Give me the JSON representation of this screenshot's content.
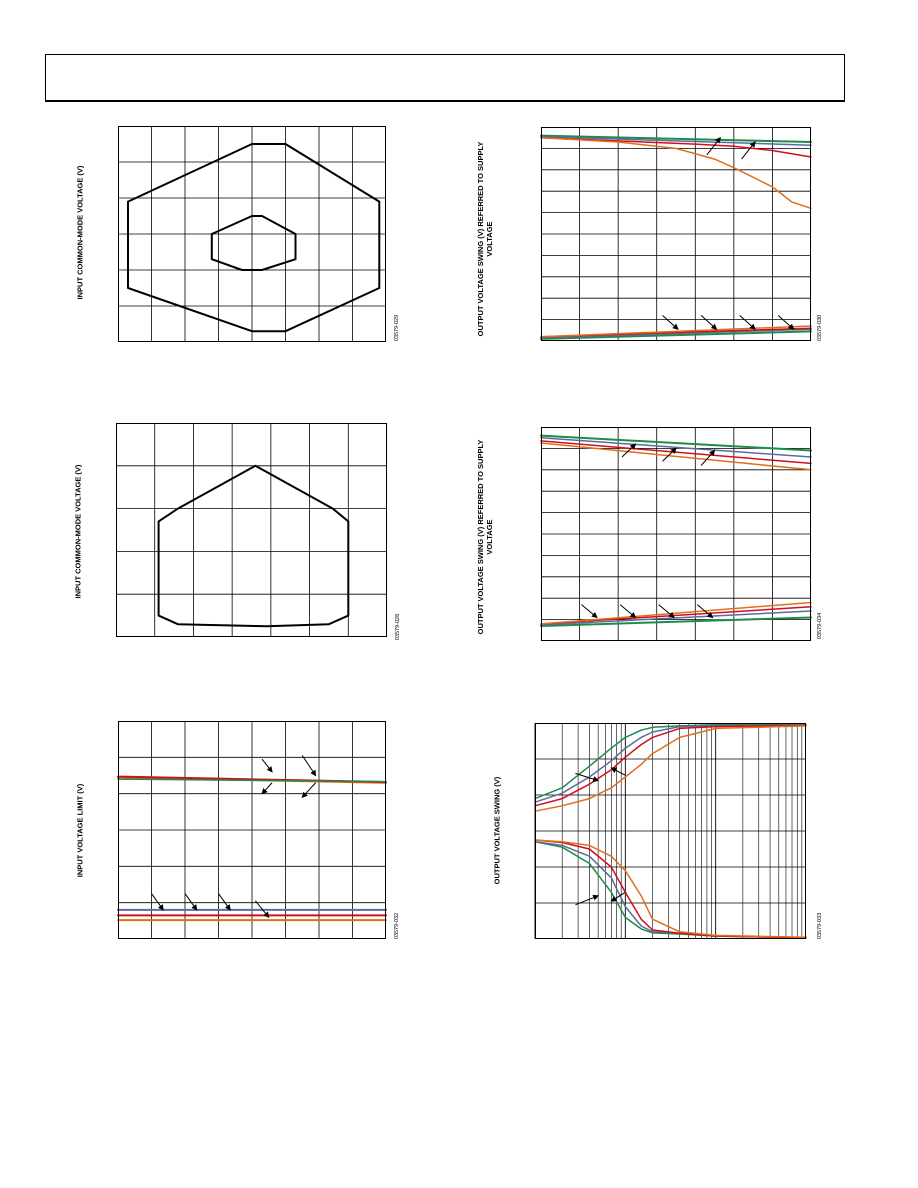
{
  "chart_data": [
    {
      "type": "line",
      "id": "c1",
      "ylabel": "INPUT COMMON-MODE VOLTAGE (V)",
      "figure_id": "03579-029",
      "xgrid": 8,
      "ygrid": 6,
      "series": [
        {
          "color": "#000000",
          "width": 2,
          "x": [
            0.3,
            4,
            5,
            7.8,
            7.8,
            5,
            4,
            0.3,
            0.3
          ],
          "y": [
            3.9,
            5.5,
            5.5,
            3.9,
            1.5,
            0.3,
            0.3,
            1.5,
            3.9
          ]
        },
        {
          "color": "#000000",
          "width": 2,
          "x": [
            2.8,
            4,
            4.3,
            5.3,
            5.3,
            4.3,
            3.7,
            2.8,
            2.8
          ],
          "y": [
            3.0,
            3.5,
            3.5,
            3.0,
            2.3,
            2.0,
            2.0,
            2.3,
            3.0
          ]
        }
      ],
      "arrows": []
    },
    {
      "type": "line",
      "id": "c2",
      "ylabel": "INPUT COMMON-MODE VOLTAGE (V)",
      "figure_id": "03579-028",
      "xgrid": 7,
      "ygrid": 5,
      "series": [
        {
          "color": "#000000",
          "width": 2,
          "x": [
            1.1,
            1.6,
            3.6,
            5.6,
            6.0,
            6.0,
            5.5,
            3.9,
            1.6,
            1.1,
            1.1
          ],
          "y": [
            2.7,
            3.0,
            4.0,
            3.0,
            2.7,
            0.5,
            0.3,
            0.25,
            0.3,
            0.5,
            2.7
          ]
        }
      ],
      "arrows": []
    },
    {
      "type": "line",
      "id": "c3",
      "ylabel": "INPUT VOLTAGE LIMIT (V)",
      "figure_id": "03579-032",
      "xgrid": 8,
      "ygrid": 6,
      "series": [
        {
          "color": "#e06f1b",
          "width": 2,
          "x": [
            0,
            8
          ],
          "y": [
            4.45,
            4.3
          ]
        },
        {
          "color": "#d0101e",
          "width": 2,
          "x": [
            0,
            8
          ],
          "y": [
            4.47,
            4.32
          ]
        },
        {
          "color": "#1f8a4c",
          "width": 1.5,
          "x": [
            0,
            8
          ],
          "y": [
            4.4,
            4.33
          ]
        },
        {
          "color": "#5c6c9c",
          "width": 2,
          "x": [
            0,
            8
          ],
          "y": [
            0.8,
            0.8
          ]
        },
        {
          "color": "#d0101e",
          "width": 2,
          "x": [
            0,
            8
          ],
          "y": [
            0.65,
            0.65
          ]
        },
        {
          "color": "#e06f1b",
          "width": 2,
          "x": [
            0,
            8
          ],
          "y": [
            0.52,
            0.52
          ]
        }
      ],
      "arrows": [
        [
          4.3,
          4.95,
          4.6,
          4.6
        ],
        [
          5.5,
          5.05,
          5.9,
          4.5
        ],
        [
          4.6,
          4.3,
          4.3,
          4.0
        ],
        [
          5.9,
          4.3,
          5.5,
          3.9
        ],
        [
          1.0,
          1.25,
          1.35,
          0.8
        ],
        [
          2.0,
          1.25,
          2.35,
          0.8
        ],
        [
          3.0,
          1.25,
          3.35,
          0.8
        ],
        [
          4.1,
          1.05,
          4.5,
          0.6
        ]
      ]
    },
    {
      "type": "line",
      "id": "c4",
      "ylabel": "OUTPUT VOLTAGE SWING (V) REFERRED TO SUPPLY VOLTAGE",
      "figure_id": "03579-030",
      "xgrid": 7,
      "ygrid": 10,
      "series": [
        {
          "color": "#1f8a4c",
          "width": 2,
          "x": [
            0,
            7
          ],
          "y": [
            9.6,
            9.3
          ]
        },
        {
          "color": "#5c6c9c",
          "width": 1.5,
          "x": [
            0,
            7
          ],
          "y": [
            9.55,
            9.15
          ]
        },
        {
          "color": "#d0101e",
          "width": 1.5,
          "x": [
            0,
            4,
            5,
            6,
            7
          ],
          "y": [
            9.5,
            9.2,
            9.1,
            8.9,
            8.6
          ]
        },
        {
          "color": "#e06f1b",
          "width": 1.5,
          "x": [
            0,
            2,
            3.5,
            4.5,
            5,
            6,
            6.5,
            7
          ],
          "y": [
            9.5,
            9.3,
            9.0,
            8.5,
            8.1,
            7.2,
            6.5,
            6.2
          ]
        },
        {
          "color": "#1f8a4c",
          "width": 2,
          "x": [
            0,
            7
          ],
          "y": [
            0.1,
            0.45
          ]
        },
        {
          "color": "#5c6c9c",
          "width": 1.5,
          "x": [
            0,
            7
          ],
          "y": [
            0.15,
            0.55
          ]
        },
        {
          "color": "#d0101e",
          "width": 1.5,
          "x": [
            0,
            7
          ],
          "y": [
            0.2,
            0.6
          ]
        },
        {
          "color": "#e06f1b",
          "width": 1.5,
          "x": [
            0,
            7
          ],
          "y": [
            0.2,
            0.7
          ]
        }
      ],
      "arrows": [
        [
          4.3,
          8.7,
          4.65,
          9.5
        ],
        [
          5.2,
          8.5,
          5.55,
          9.3
        ],
        [
          3.15,
          1.2,
          3.55,
          0.55
        ],
        [
          4.15,
          1.2,
          4.55,
          0.55
        ],
        [
          5.15,
          1.2,
          5.55,
          0.55
        ],
        [
          6.15,
          1.2,
          6.55,
          0.55
        ]
      ]
    },
    {
      "type": "line",
      "id": "c5",
      "ylabel": "OUTPUT VOLTAGE SWING (V) REFERRED TO SUPPLY VOLTAGE",
      "figure_id": "03579-034",
      "xgrid": 7,
      "ygrid": 10,
      "series": [
        {
          "color": "#1f8a4c",
          "width": 2,
          "x": [
            0,
            7
          ],
          "y": [
            9.6,
            8.9
          ]
        },
        {
          "color": "#5c6c9c",
          "width": 1.5,
          "x": [
            0,
            7
          ],
          "y": [
            9.5,
            8.6
          ]
        },
        {
          "color": "#d0101e",
          "width": 1.5,
          "x": [
            0,
            7
          ],
          "y": [
            9.35,
            8.3
          ]
        },
        {
          "color": "#e06f1b",
          "width": 1.5,
          "x": [
            0,
            7
          ],
          "y": [
            9.25,
            8.0
          ]
        },
        {
          "color": "#1f8a4c",
          "width": 2,
          "x": [
            0,
            7
          ],
          "y": [
            0.7,
            1.1
          ]
        },
        {
          "color": "#5c6c9c",
          "width": 1.5,
          "x": [
            0,
            7
          ],
          "y": [
            0.75,
            1.4
          ]
        },
        {
          "color": "#d0101e",
          "width": 1.5,
          "x": [
            0,
            7
          ],
          "y": [
            0.8,
            1.6
          ]
        },
        {
          "color": "#e06f1b",
          "width": 1.5,
          "x": [
            0,
            7
          ],
          "y": [
            0.8,
            1.8
          ]
        }
      ],
      "arrows": [
        [
          2.1,
          8.6,
          2.45,
          9.2
        ],
        [
          3.15,
          8.4,
          3.5,
          9.0
        ],
        [
          4.15,
          8.2,
          4.5,
          8.9
        ],
        [
          1.05,
          1.7,
          1.45,
          1.1
        ],
        [
          2.05,
          1.7,
          2.45,
          1.1
        ],
        [
          3.05,
          1.7,
          3.45,
          1.1
        ],
        [
          4.05,
          1.7,
          4.45,
          1.1
        ]
      ]
    },
    {
      "type": "line",
      "id": "c6",
      "ylabel": "OUTPUT VOLTAGE SWING (V)",
      "figure_id": "03579-033",
      "xscale": "log",
      "xlim": [
        100,
        100000
      ],
      "ylim": [
        0,
        6
      ],
      "ygrid": 6,
      "series": [
        {
          "color": "#1f8a4c",
          "width": 1.5,
          "x": [
            100,
            200,
            400,
            700,
            1000,
            1500,
            2000,
            4000,
            10000,
            100000
          ],
          "y": [
            3.9,
            4.2,
            4.8,
            5.3,
            5.6,
            5.8,
            5.88,
            5.92,
            5.95,
            5.95
          ]
        },
        {
          "color": "#5c6c9c",
          "width": 1.5,
          "x": [
            100,
            200,
            400,
            700,
            1000,
            1500,
            2000,
            4000,
            10000,
            100000
          ],
          "y": [
            3.8,
            4.05,
            4.5,
            4.95,
            5.3,
            5.6,
            5.75,
            5.9,
            5.92,
            5.94
          ]
        },
        {
          "color": "#d0101e",
          "width": 1.5,
          "x": [
            100,
            200,
            400,
            700,
            1000,
            1500,
            2000,
            4000,
            10000,
            100000
          ],
          "y": [
            3.7,
            3.9,
            4.3,
            4.7,
            5.05,
            5.4,
            5.6,
            5.85,
            5.9,
            5.93
          ]
        },
        {
          "color": "#e06f1b",
          "width": 1.5,
          "x": [
            100,
            200,
            400,
            700,
            1000,
            1500,
            2000,
            4000,
            10000,
            100000
          ],
          "y": [
            3.55,
            3.7,
            3.9,
            4.2,
            4.5,
            4.85,
            5.15,
            5.6,
            5.85,
            5.92
          ]
        },
        {
          "color": "#1f8a4c",
          "width": 1.5,
          "x": [
            100,
            200,
            400,
            700,
            1000,
            1500,
            2000,
            4000,
            10000,
            100000
          ],
          "y": [
            2.7,
            2.55,
            2.1,
            1.3,
            0.6,
            0.28,
            0.17,
            0.14,
            0.08,
            0.04
          ]
        },
        {
          "color": "#5c6c9c",
          "width": 1.5,
          "x": [
            100,
            200,
            400,
            700,
            1000,
            1500,
            2000,
            4000,
            10000,
            100000
          ],
          "y": [
            2.7,
            2.6,
            2.3,
            1.7,
            0.9,
            0.36,
            0.2,
            0.16,
            0.08,
            0.04
          ]
        },
        {
          "color": "#d0101e",
          "width": 1.5,
          "x": [
            100,
            200,
            400,
            700,
            1000,
            1500,
            2000,
            4000,
            10000,
            100000
          ],
          "y": [
            2.75,
            2.68,
            2.5,
            2.0,
            1.3,
            0.55,
            0.25,
            0.16,
            0.08,
            0.04
          ]
        },
        {
          "color": "#e06f1b",
          "width": 1.5,
          "x": [
            100,
            200,
            400,
            700,
            1000,
            1500,
            2000,
            4000,
            10000,
            100000
          ],
          "y": [
            2.75,
            2.7,
            2.6,
            2.3,
            1.9,
            1.2,
            0.55,
            0.2,
            0.1,
            0.05
          ]
        }
      ],
      "arrows": [
        [
          280,
          4.6,
          500,
          4.4
        ],
        [
          1000,
          4.55,
          700,
          4.75
        ],
        [
          280,
          0.95,
          500,
          1.2
        ],
        [
          1000,
          1.3,
          700,
          1.05
        ]
      ]
    }
  ]
}
